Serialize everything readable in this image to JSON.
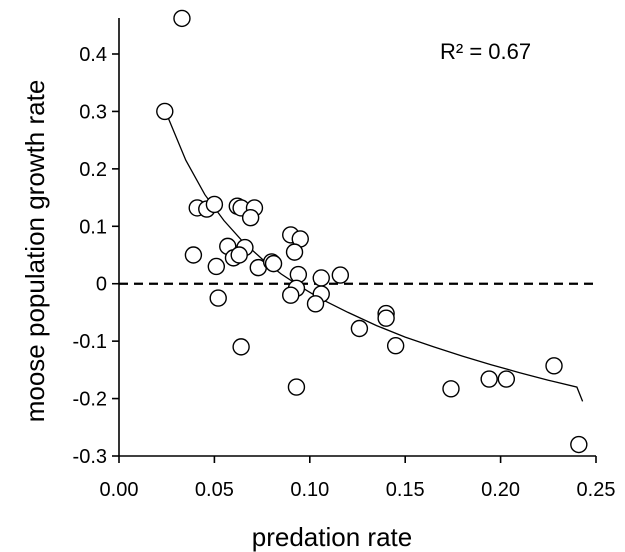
{
  "chart_data": {
    "type": "scatter",
    "xlabel": "predation rate",
    "ylabel": "moose population growth rate",
    "xlim": [
      0.0,
      0.25
    ],
    "ylim": [
      -0.3,
      0.45
    ],
    "x_ticks": [
      "0.00",
      "0.05",
      "0.10",
      "0.15",
      "0.20",
      "0.25"
    ],
    "x_tick_values": [
      0.0,
      0.05,
      0.1,
      0.15,
      0.2,
      0.25
    ],
    "y_ticks": [
      "0.4",
      "0.3",
      "0.2",
      "0.1",
      "0",
      "-0.1",
      "-0.2",
      "-0.3"
    ],
    "y_tick_values": [
      0.4,
      0.3,
      0.2,
      0.1,
      0.0,
      -0.1,
      -0.2,
      -0.3
    ],
    "annotation": "R² = 0.67",
    "grid": false,
    "reference_line": {
      "y": 0,
      "style": "dashed"
    },
    "trend_line": {
      "type": "curve",
      "points": [
        [
          0.025,
          0.295
        ],
        [
          0.035,
          0.215
        ],
        [
          0.045,
          0.155
        ],
        [
          0.055,
          0.11
        ],
        [
          0.065,
          0.073
        ],
        [
          0.075,
          0.043
        ],
        [
          0.085,
          0.017
        ],
        [
          0.095,
          -0.005
        ],
        [
          0.105,
          -0.025
        ],
        [
          0.12,
          -0.05
        ],
        [
          0.135,
          -0.073
        ],
        [
          0.15,
          -0.093
        ],
        [
          0.165,
          -0.11
        ],
        [
          0.18,
          -0.126
        ],
        [
          0.195,
          -0.141
        ],
        [
          0.21,
          -0.155
        ],
        [
          0.225,
          -0.168
        ],
        [
          0.24,
          -0.18
        ],
        [
          0.243,
          -0.205
        ]
      ]
    },
    "points": [
      {
        "x": 0.033,
        "y": 0.462
      },
      {
        "x": 0.024,
        "y": 0.3
      },
      {
        "x": 0.041,
        "y": 0.132
      },
      {
        "x": 0.046,
        "y": 0.13
      },
      {
        "x": 0.05,
        "y": 0.138
      },
      {
        "x": 0.062,
        "y": 0.135
      },
      {
        "x": 0.064,
        "y": 0.132
      },
      {
        "x": 0.071,
        "y": 0.132
      },
      {
        "x": 0.069,
        "y": 0.115
      },
      {
        "x": 0.039,
        "y": 0.05
      },
      {
        "x": 0.057,
        "y": 0.065
      },
      {
        "x": 0.066,
        "y": 0.063
      },
      {
        "x": 0.06,
        "y": 0.045
      },
      {
        "x": 0.063,
        "y": 0.05
      },
      {
        "x": 0.051,
        "y": 0.03
      },
      {
        "x": 0.073,
        "y": 0.028
      },
      {
        "x": 0.08,
        "y": 0.038
      },
      {
        "x": 0.081,
        "y": 0.035
      },
      {
        "x": 0.09,
        "y": 0.085
      },
      {
        "x": 0.095,
        "y": 0.078
      },
      {
        "x": 0.092,
        "y": 0.055
      },
      {
        "x": 0.094,
        "y": 0.016
      },
      {
        "x": 0.106,
        "y": 0.01
      },
      {
        "x": 0.116,
        "y": 0.015
      },
      {
        "x": 0.093,
        "y": -0.008
      },
      {
        "x": 0.09,
        "y": -0.02
      },
      {
        "x": 0.106,
        "y": -0.018
      },
      {
        "x": 0.103,
        "y": -0.035
      },
      {
        "x": 0.052,
        "y": -0.025
      },
      {
        "x": 0.126,
        "y": -0.078
      },
      {
        "x": 0.14,
        "y": -0.052
      },
      {
        "x": 0.14,
        "y": -0.06
      },
      {
        "x": 0.145,
        "y": -0.108
      },
      {
        "x": 0.064,
        "y": -0.11
      },
      {
        "x": 0.093,
        "y": -0.18
      },
      {
        "x": 0.174,
        "y": -0.183
      },
      {
        "x": 0.194,
        "y": -0.166
      },
      {
        "x": 0.203,
        "y": -0.166
      },
      {
        "x": 0.228,
        "y": -0.143
      },
      {
        "x": 0.241,
        "y": -0.28
      }
    ]
  }
}
